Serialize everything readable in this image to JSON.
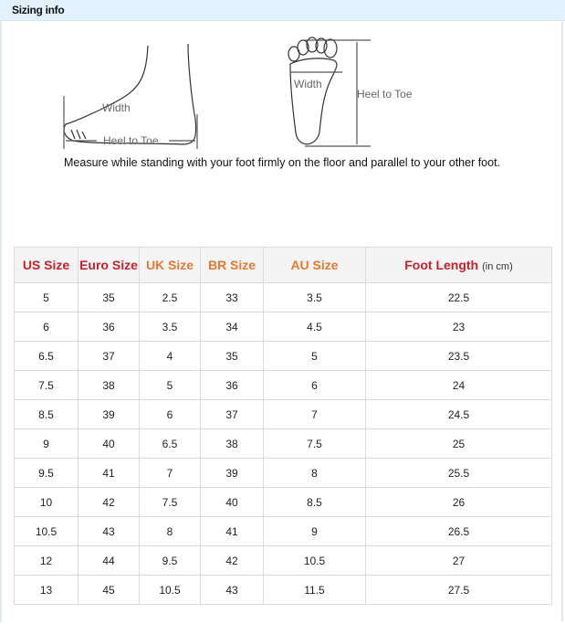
{
  "header": {
    "title": "Sizing info"
  },
  "diagram": {
    "side_width": "Width",
    "side_heel": "Heel to Toe",
    "sole_width": "Width",
    "sole_heel": "Heel to Toe"
  },
  "caption": "Measure while standing with your foot firmly on the floor and parallel to your other foot.",
  "colors": {
    "red": "#cc1f2d",
    "orange": "#e8792f",
    "header_bg": "#e2f1fb"
  },
  "table": {
    "headers": [
      "US Size",
      "Euro Size",
      "UK Size",
      "BR Size",
      "AU Size",
      "Foot Length"
    ],
    "unit": "(in cm)",
    "rows": [
      [
        "5",
        "35",
        "2.5",
        "33",
        "3.5",
        "22.5"
      ],
      [
        "6",
        "36",
        "3.5",
        "34",
        "4.5",
        "23"
      ],
      [
        "6.5",
        "37",
        "4",
        "35",
        "5",
        "23.5"
      ],
      [
        "7.5",
        "38",
        "5",
        "36",
        "6",
        "24"
      ],
      [
        "8.5",
        "39",
        "6",
        "37",
        "7",
        "24.5"
      ],
      [
        "9",
        "40",
        "6.5",
        "38",
        "7.5",
        "25"
      ],
      [
        "9.5",
        "41",
        "7",
        "39",
        "8",
        "25.5"
      ],
      [
        "10",
        "42",
        "7.5",
        "40",
        "8.5",
        "26"
      ],
      [
        "10.5",
        "43",
        "8",
        "41",
        "9",
        "26.5"
      ],
      [
        "12",
        "44",
        "9.5",
        "42",
        "10.5",
        "27"
      ],
      [
        "13",
        "45",
        "10.5",
        "43",
        "11.5",
        "27.5"
      ]
    ]
  }
}
